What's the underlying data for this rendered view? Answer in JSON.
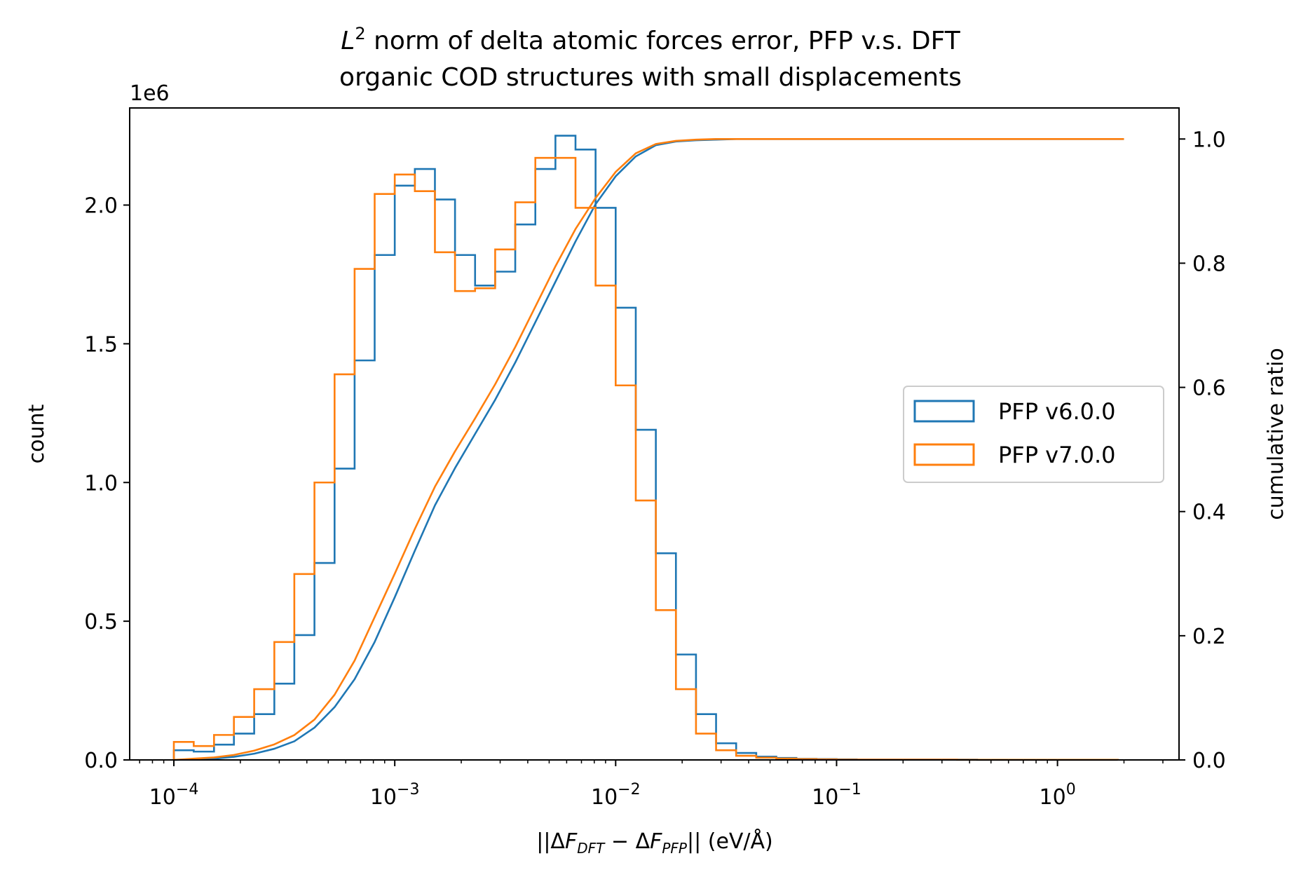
{
  "chart_data": {
    "type": "histogram",
    "title": {
      "line1_math": "L",
      "line1_sup": "2",
      "line1_rest": " norm of delta atomic forces error, PFP v.s. DFT",
      "line2": "organic COD structures with small displacements"
    },
    "xlabel": {
      "prefix": "||Δ",
      "F1": "F",
      "sub1": "DFT",
      "mid": " − Δ",
      "F2": "F",
      "sub2": "PFP",
      "suffix": "|| (eV/Å)"
    },
    "ylabel_left": "count",
    "ylabel_right": "cumulative ratio",
    "y_offset_label": "1e6",
    "xscale": "log",
    "xlim": [
      6.31e-05,
      3.55
    ],
    "ylim_left": [
      0,
      2.35
    ],
    "ylim_right": [
      0,
      1.05
    ],
    "x_ticks": [
      {
        "value": 0.0001,
        "base": "10",
        "exp": "−4"
      },
      {
        "value": 0.001,
        "base": "10",
        "exp": "−3"
      },
      {
        "value": 0.01,
        "base": "10",
        "exp": "−2"
      },
      {
        "value": 0.1,
        "base": "10",
        "exp": "−1"
      },
      {
        "value": 1,
        "base": "10",
        "exp": "0"
      }
    ],
    "y_ticks_left": [
      "0.0",
      "0.5",
      "1.0",
      "1.5",
      "2.0"
    ],
    "y_ticks_left_values": [
      0,
      0.5,
      1.0,
      1.5,
      2.0
    ],
    "y_ticks_right": [
      "0.0",
      "0.2",
      "0.4",
      "0.6",
      "0.8",
      "1.0"
    ],
    "y_ticks_right_values": [
      0,
      0.2,
      0.4,
      0.6,
      0.8,
      1.0
    ],
    "bin_edges": [
      0.0001,
      0.000123,
      0.000152,
      0.000187,
      0.000231,
      0.000285,
      0.000351,
      0.000433,
      0.000534,
      0.000658,
      0.000811,
      0.001,
      0.001233,
      0.00152,
      0.001874,
      0.00231,
      0.002848,
      0.003511,
      0.004329,
      0.005337,
      0.006579,
      0.008111,
      0.01,
      0.01233,
      0.0152,
      0.01874,
      0.0231,
      0.02848,
      0.03511,
      0.04329,
      0.05337,
      0.06579,
      0.08111,
      0.1,
      0.1233,
      0.152,
      0.1874,
      0.231,
      0.2848,
      0.3511,
      0.4329,
      0.5337,
      0.6579,
      0.8111,
      1.0,
      1.233,
      1.52,
      1.874
    ],
    "series": [
      {
        "name": "PFP v6.0.0",
        "color": "#1f77b4",
        "counts_1e6": [
          0.035,
          0.03,
          0.055,
          0.095,
          0.165,
          0.275,
          0.45,
          0.71,
          1.05,
          1.44,
          1.82,
          2.07,
          2.13,
          2.02,
          1.82,
          1.71,
          1.76,
          1.93,
          2.13,
          2.25,
          2.2,
          1.99,
          1.63,
          1.19,
          0.745,
          0.38,
          0.165,
          0.06,
          0.025,
          0.012,
          0.007,
          0.004,
          0.003,
          0.002,
          0.001,
          0.001,
          0.001,
          0.001,
          0.001,
          0.001,
          0.0005,
          0.0005,
          0.0005,
          0.0005,
          0.0005,
          0.0005,
          0.0005
        ],
        "cumulative": {
          "x": [
            0.0001,
            0.000123,
            0.000152,
            0.000187,
            0.000231,
            0.000285,
            0.000351,
            0.000433,
            0.000534,
            0.000658,
            0.000811,
            0.001,
            0.001233,
            0.00152,
            0.001874,
            0.00231,
            0.002848,
            0.003511,
            0.004329,
            0.005337,
            0.006579,
            0.008111,
            0.01,
            0.01233,
            0.0152,
            0.01874,
            0.0231,
            0.02848,
            0.03511,
            0.05,
            0.1,
            0.5,
            1.0,
            2.0
          ],
          "y": [
            0.0,
            0.001,
            0.002,
            0.005,
            0.01,
            0.018,
            0.03,
            0.052,
            0.085,
            0.13,
            0.19,
            0.262,
            0.337,
            0.41,
            0.47,
            0.525,
            0.58,
            0.64,
            0.705,
            0.77,
            0.835,
            0.895,
            0.94,
            0.972,
            0.99,
            0.996,
            0.998,
            0.999,
            1.0,
            1.0,
            1.0,
            1.0,
            1.0,
            1.0
          ]
        }
      },
      {
        "name": "PFP v7.0.0",
        "color": "#ff7f0e",
        "counts_1e6": [
          0.065,
          0.05,
          0.09,
          0.155,
          0.255,
          0.425,
          0.67,
          1.0,
          1.39,
          1.77,
          2.04,
          2.11,
          2.05,
          1.83,
          1.69,
          1.7,
          1.84,
          2.01,
          2.17,
          2.17,
          1.99,
          1.71,
          1.35,
          0.935,
          0.54,
          0.255,
          0.095,
          0.035,
          0.015,
          0.008,
          0.005,
          0.003,
          0.002,
          0.001,
          0.001,
          0.001,
          0.001,
          0.001,
          0.001,
          0.0005,
          0.0005,
          0.0005,
          0.0005,
          0.0005,
          0.0005,
          0.0005,
          0.0005
        ],
        "cumulative": {
          "x": [
            0.0001,
            0.000123,
            0.000152,
            0.000187,
            0.000231,
            0.000285,
            0.000351,
            0.000433,
            0.000534,
            0.000658,
            0.000811,
            0.001,
            0.001233,
            0.00152,
            0.001874,
            0.00231,
            0.002848,
            0.003511,
            0.004329,
            0.005337,
            0.006579,
            0.008111,
            0.01,
            0.01233,
            0.0152,
            0.01874,
            0.0231,
            0.02848,
            0.03511,
            0.05,
            0.1,
            0.5,
            1.0,
            2.0
          ],
          "y": [
            0.0,
            0.002,
            0.004,
            0.008,
            0.015,
            0.025,
            0.04,
            0.065,
            0.105,
            0.16,
            0.23,
            0.3,
            0.372,
            0.44,
            0.497,
            0.55,
            0.605,
            0.665,
            0.73,
            0.795,
            0.855,
            0.905,
            0.947,
            0.977,
            0.992,
            0.997,
            0.999,
            1.0,
            1.0,
            1.0,
            1.0,
            1.0,
            1.0,
            1.0
          ]
        }
      }
    ],
    "legend": {
      "placement": "center-right",
      "entries": [
        "PFP v6.0.0",
        "PFP v7.0.0"
      ]
    }
  }
}
